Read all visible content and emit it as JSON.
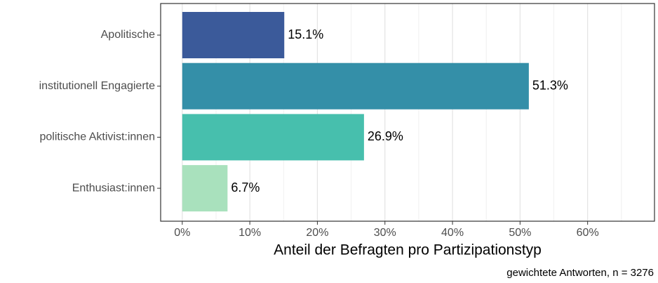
{
  "chart_data": {
    "type": "barh",
    "categories": [
      "Apolitische",
      "institutionell Engagierte",
      "politische Aktivist:innen",
      "Enthusiast:innen"
    ],
    "series": [
      {
        "colors": [
          "#3b5a9a",
          "#348fa8",
          "#47bfad",
          "#a9e1bd"
        ],
        "values": [
          15.1,
          51.3,
          26.9,
          6.7
        ],
        "value_labels": [
          "15.1%",
          "51.3%",
          "26.9%",
          "6.7%"
        ]
      }
    ],
    "xlabel": "Anteil der Befragten pro Partizipationstyp",
    "caption": "gewichtete Antworten, n = 3276",
    "xlim": [
      -3.2,
      69.9
    ],
    "xticks": [
      {
        "value": 0,
        "label": "0%"
      },
      {
        "value": 10,
        "label": "10%"
      },
      {
        "value": 20,
        "label": "20%"
      },
      {
        "value": 30,
        "label": "30%"
      },
      {
        "value": 40,
        "label": "40%"
      },
      {
        "value": 50,
        "label": "50%"
      },
      {
        "value": 60,
        "label": "60%"
      }
    ],
    "xminor": [
      5,
      15,
      25,
      35,
      45,
      55,
      65
    ],
    "grid": true
  }
}
